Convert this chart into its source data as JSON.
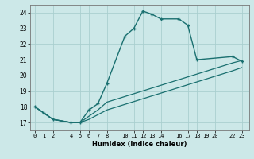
{
  "xlabel": "Humidex (Indice chaleur)",
  "bg_color": "#cce8e8",
  "grid_color": "#aacfcf",
  "line_color": "#1a7070",
  "xlim": [
    -0.5,
    23.8
  ],
  "ylim": [
    16.5,
    24.5
  ],
  "xticks": [
    0,
    1,
    2,
    4,
    5,
    6,
    7,
    8,
    10,
    11,
    12,
    13,
    14,
    16,
    17,
    18,
    19,
    20,
    22,
    23
  ],
  "xtick_labels": [
    "0",
    "1",
    "2",
    "4",
    "5",
    "6",
    "7",
    "8",
    "10",
    "11",
    "12",
    "13",
    "14",
    "16",
    "17",
    "18",
    "19",
    "20",
    "22",
    "23"
  ],
  "yticks": [
    17,
    18,
    19,
    20,
    21,
    22,
    23,
    24
  ],
  "line1_x": [
    0,
    1,
    2,
    4,
    5,
    6,
    7,
    8,
    10,
    11,
    12,
    13,
    14,
    16,
    17,
    18,
    22,
    23
  ],
  "line1_y": [
    18.0,
    17.6,
    17.2,
    17.0,
    17.0,
    17.8,
    18.2,
    19.5,
    22.5,
    23.0,
    24.1,
    23.9,
    23.6,
    23.6,
    23.2,
    21.0,
    21.2,
    20.9
  ],
  "line2_x": [
    0,
    1,
    2,
    4,
    5,
    6,
    7,
    8,
    22,
    23
  ],
  "line2_y": [
    18.0,
    17.6,
    17.2,
    17.0,
    17.0,
    17.2,
    17.5,
    17.8,
    20.3,
    20.5
  ],
  "line3_x": [
    0,
    1,
    2,
    4,
    5,
    6,
    7,
    8,
    22,
    23
  ],
  "line3_y": [
    18.0,
    17.6,
    17.2,
    17.0,
    17.0,
    17.4,
    17.8,
    18.3,
    20.8,
    20.95
  ]
}
